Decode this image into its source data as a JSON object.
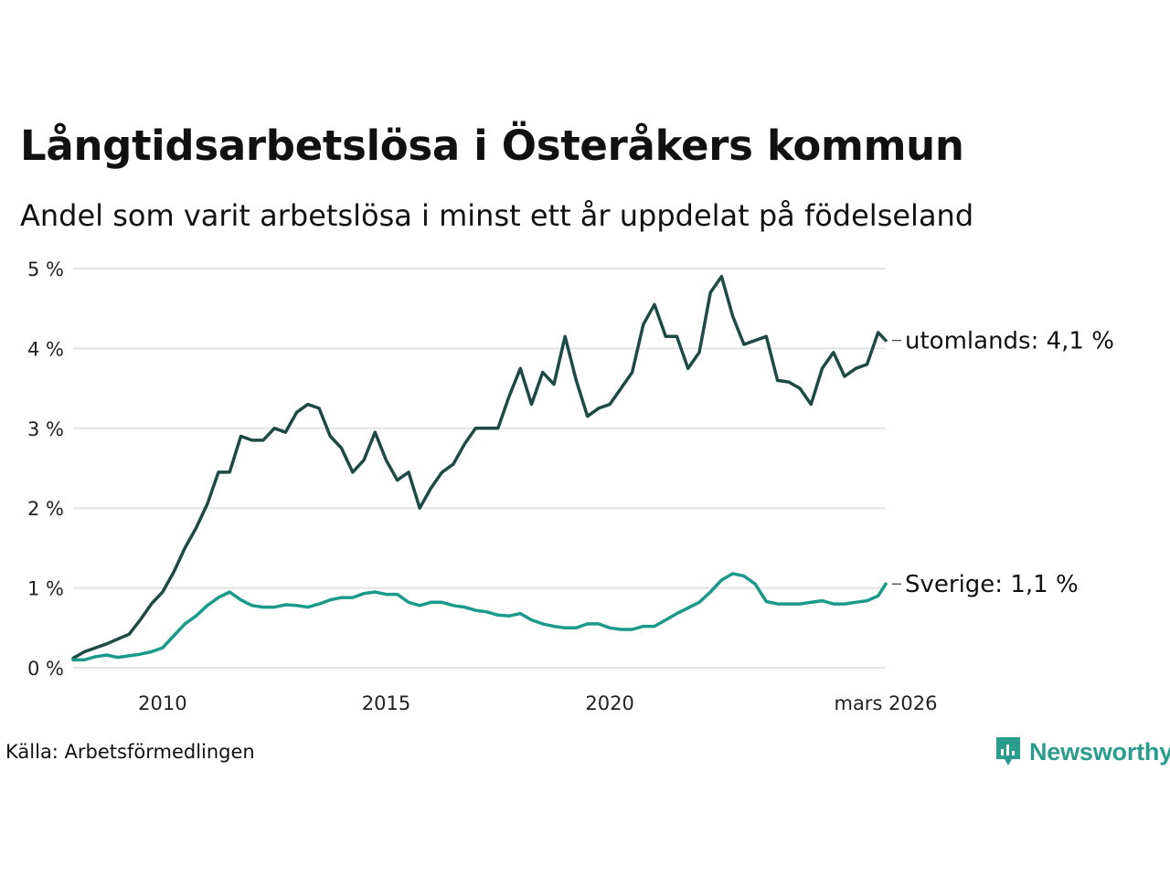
{
  "header": {
    "title": "Långtidsarbetslösa i Österåkers kommun",
    "subtitle": "Andel som varit arbetslösa i minst ett år uppdelat på födelseland"
  },
  "footer": {
    "source": "Källa: Arbetsförmedlingen",
    "brand": "Newsworthy"
  },
  "colors": {
    "utomlands": "#1e4a46",
    "sverige": "#1a9a8b",
    "grid": "#e3e3e3",
    "brand": "#2a9d8f"
  },
  "chart_data": {
    "type": "line",
    "title": "Långtidsarbetslösa i Österåkers kommun",
    "subtitle": "Andel som varit arbetslösa i minst ett år uppdelat på födelseland",
    "xlabel": "",
    "ylabel": "",
    "x_range": [
      2008.0,
      2026.17
    ],
    "ylim": [
      0,
      5
    ],
    "y_ticks": [
      0,
      1,
      2,
      3,
      4,
      5
    ],
    "y_tick_labels": [
      "0 %",
      "1 %",
      "2 %",
      "3 %",
      "4 %",
      "5 %"
    ],
    "x_ticks": [
      2010,
      2015,
      2020,
      2026.17
    ],
    "x_tick_labels": [
      "2010",
      "2015",
      "2020",
      "mars 2026"
    ],
    "grid": true,
    "series": [
      {
        "name": "utomlands",
        "end_label": "utomlands: 4,1 %",
        "color": "#1e4a46",
        "points": [
          [
            2008.0,
            0.12
          ],
          [
            2008.25,
            0.2
          ],
          [
            2008.5,
            0.25
          ],
          [
            2008.75,
            0.3
          ],
          [
            2009.0,
            0.36
          ],
          [
            2009.25,
            0.42
          ],
          [
            2009.5,
            0.6
          ],
          [
            2009.75,
            0.8
          ],
          [
            2010.0,
            0.95
          ],
          [
            2010.25,
            1.2
          ],
          [
            2010.5,
            1.5
          ],
          [
            2010.75,
            1.75
          ],
          [
            2011.0,
            2.05
          ],
          [
            2011.25,
            2.45
          ],
          [
            2011.5,
            2.45
          ],
          [
            2011.75,
            2.9
          ],
          [
            2012.0,
            2.85
          ],
          [
            2012.25,
            2.85
          ],
          [
            2012.5,
            3.0
          ],
          [
            2012.75,
            2.95
          ],
          [
            2013.0,
            3.2
          ],
          [
            2013.25,
            3.3
          ],
          [
            2013.5,
            3.25
          ],
          [
            2013.75,
            2.9
          ],
          [
            2014.0,
            2.75
          ],
          [
            2014.25,
            2.45
          ],
          [
            2014.5,
            2.6
          ],
          [
            2014.75,
            2.95
          ],
          [
            2015.0,
            2.6
          ],
          [
            2015.25,
            2.35
          ],
          [
            2015.5,
            2.45
          ],
          [
            2015.75,
            2.0
          ],
          [
            2016.0,
            2.25
          ],
          [
            2016.25,
            2.45
          ],
          [
            2016.5,
            2.55
          ],
          [
            2016.75,
            2.8
          ],
          [
            2017.0,
            3.0
          ],
          [
            2017.25,
            3.0
          ],
          [
            2017.5,
            3.0
          ],
          [
            2017.75,
            3.4
          ],
          [
            2018.0,
            3.75
          ],
          [
            2018.25,
            3.3
          ],
          [
            2018.5,
            3.7
          ],
          [
            2018.75,
            3.55
          ],
          [
            2019.0,
            4.15
          ],
          [
            2019.25,
            3.6
          ],
          [
            2019.5,
            3.15
          ],
          [
            2019.75,
            3.25
          ],
          [
            2020.0,
            3.3
          ],
          [
            2020.25,
            3.5
          ],
          [
            2020.5,
            3.7
          ],
          [
            2020.75,
            4.3
          ],
          [
            2021.0,
            4.55
          ],
          [
            2021.25,
            4.15
          ],
          [
            2021.5,
            4.15
          ],
          [
            2021.75,
            3.75
          ],
          [
            2022.0,
            3.95
          ],
          [
            2022.25,
            4.7
          ],
          [
            2022.5,
            4.9
          ],
          [
            2022.75,
            4.4
          ],
          [
            2023.0,
            4.05
          ],
          [
            2023.25,
            4.1
          ],
          [
            2023.5,
            4.15
          ],
          [
            2023.75,
            3.6
          ],
          [
            2024.0,
            3.58
          ],
          [
            2024.25,
            3.5
          ],
          [
            2024.5,
            3.3
          ],
          [
            2024.75,
            3.75
          ],
          [
            2025.0,
            3.95
          ],
          [
            2025.25,
            3.65
          ],
          [
            2025.5,
            3.75
          ],
          [
            2025.75,
            3.8
          ],
          [
            2026.0,
            4.2
          ],
          [
            2026.17,
            4.1
          ]
        ]
      },
      {
        "name": "Sverige",
        "end_label": "Sverige: 1,1 %",
        "color": "#1a9a8b",
        "points": [
          [
            2008.0,
            0.1
          ],
          [
            2008.25,
            0.1
          ],
          [
            2008.5,
            0.14
          ],
          [
            2008.75,
            0.16
          ],
          [
            2009.0,
            0.13
          ],
          [
            2009.25,
            0.15
          ],
          [
            2009.5,
            0.17
          ],
          [
            2009.75,
            0.2
          ],
          [
            2010.0,
            0.25
          ],
          [
            2010.25,
            0.4
          ],
          [
            2010.5,
            0.55
          ],
          [
            2010.75,
            0.65
          ],
          [
            2011.0,
            0.78
          ],
          [
            2011.25,
            0.88
          ],
          [
            2011.5,
            0.95
          ],
          [
            2011.75,
            0.85
          ],
          [
            2012.0,
            0.78
          ],
          [
            2012.25,
            0.76
          ],
          [
            2012.5,
            0.76
          ],
          [
            2012.75,
            0.79
          ],
          [
            2013.0,
            0.78
          ],
          [
            2013.25,
            0.76
          ],
          [
            2013.5,
            0.8
          ],
          [
            2013.75,
            0.85
          ],
          [
            2014.0,
            0.88
          ],
          [
            2014.25,
            0.88
          ],
          [
            2014.5,
            0.93
          ],
          [
            2014.75,
            0.95
          ],
          [
            2015.0,
            0.92
          ],
          [
            2015.25,
            0.92
          ],
          [
            2015.5,
            0.82
          ],
          [
            2015.75,
            0.78
          ],
          [
            2016.0,
            0.82
          ],
          [
            2016.25,
            0.82
          ],
          [
            2016.5,
            0.78
          ],
          [
            2016.75,
            0.76
          ],
          [
            2017.0,
            0.72
          ],
          [
            2017.25,
            0.7
          ],
          [
            2017.5,
            0.66
          ],
          [
            2017.75,
            0.65
          ],
          [
            2018.0,
            0.68
          ],
          [
            2018.25,
            0.6
          ],
          [
            2018.5,
            0.55
          ],
          [
            2018.75,
            0.52
          ],
          [
            2019.0,
            0.5
          ],
          [
            2019.25,
            0.5
          ],
          [
            2019.5,
            0.55
          ],
          [
            2019.75,
            0.55
          ],
          [
            2020.0,
            0.5
          ],
          [
            2020.25,
            0.48
          ],
          [
            2020.5,
            0.48
          ],
          [
            2020.75,
            0.52
          ],
          [
            2021.0,
            0.52
          ],
          [
            2021.25,
            0.6
          ],
          [
            2021.5,
            0.68
          ],
          [
            2021.75,
            0.75
          ],
          [
            2022.0,
            0.82
          ],
          [
            2022.25,
            0.95
          ],
          [
            2022.5,
            1.1
          ],
          [
            2022.75,
            1.18
          ],
          [
            2023.0,
            1.15
          ],
          [
            2023.25,
            1.05
          ],
          [
            2023.5,
            0.83
          ],
          [
            2023.75,
            0.8
          ],
          [
            2024.0,
            0.8
          ],
          [
            2024.25,
            0.8
          ],
          [
            2024.5,
            0.82
          ],
          [
            2024.75,
            0.84
          ],
          [
            2025.0,
            0.8
          ],
          [
            2025.25,
            0.8
          ],
          [
            2025.5,
            0.82
          ],
          [
            2025.75,
            0.84
          ],
          [
            2026.0,
            0.9
          ],
          [
            2026.17,
            1.05
          ]
        ]
      }
    ]
  }
}
